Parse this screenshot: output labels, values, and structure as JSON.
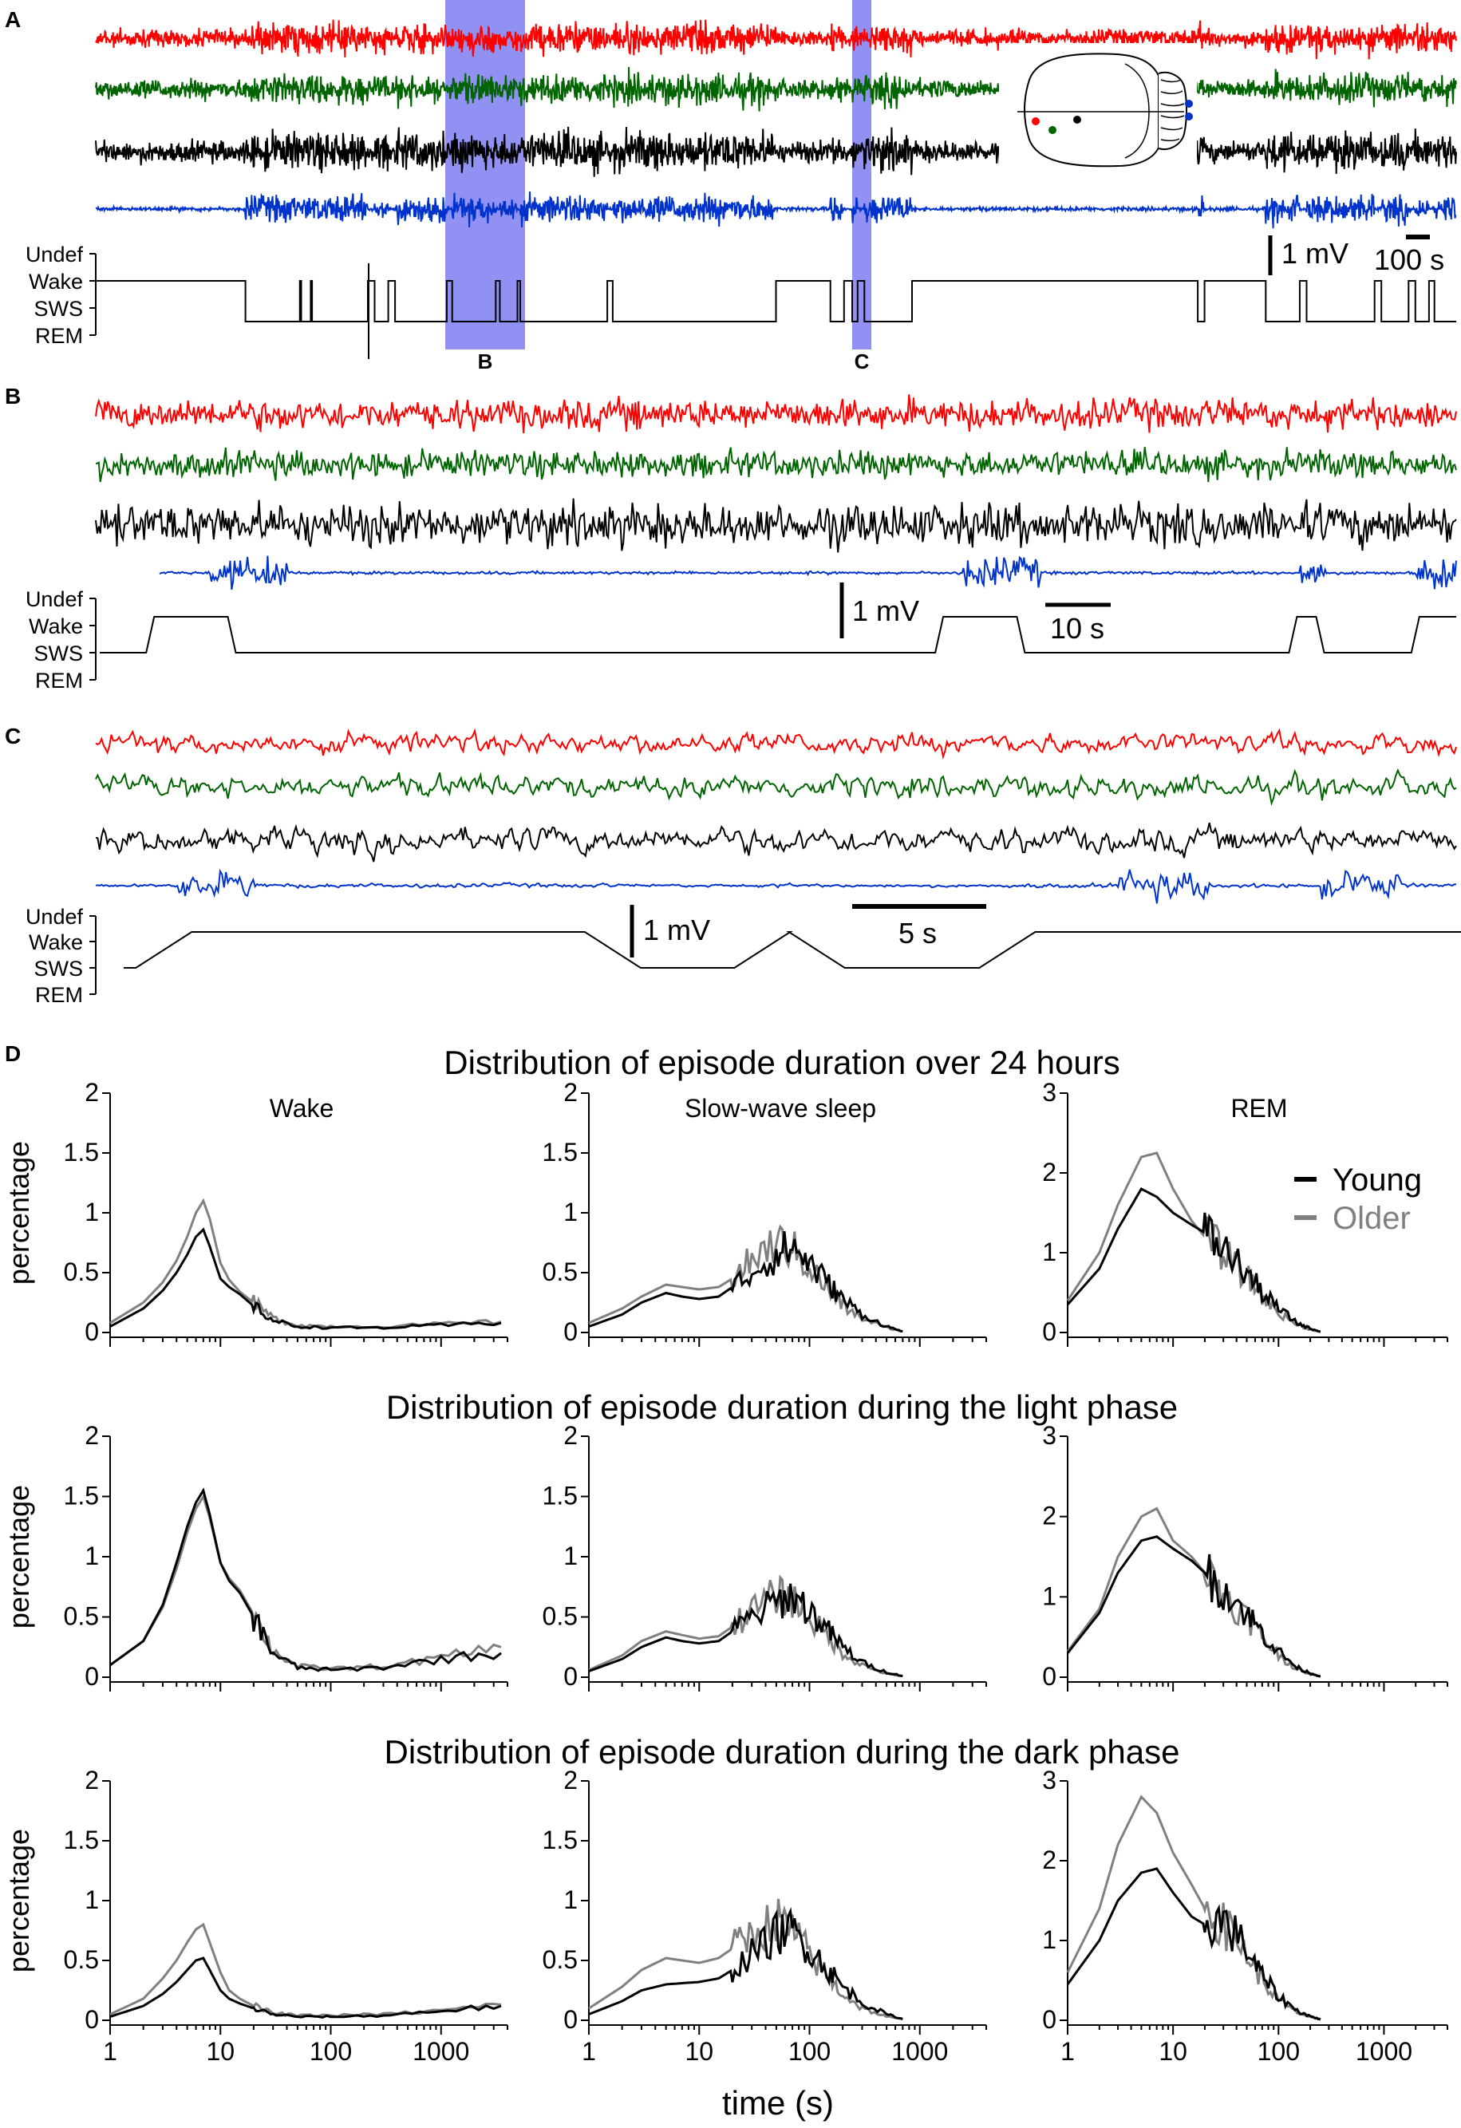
{
  "panel_labels": [
    "A",
    "B",
    "C",
    "D"
  ],
  "stage_labels": [
    "Undef",
    "Wake",
    "SWS",
    "REM"
  ],
  "highlight_labels": [
    "B",
    "C"
  ],
  "scalebars": {
    "a_amp": "1 mV",
    "a_time": "100 s",
    "b_amp": "1 mV",
    "b_time": "10 s",
    "c_amp": "1 mV",
    "c_time": "5 s"
  },
  "colors": {
    "trace_red": "#ff0000",
    "trace_green": "#006400",
    "trace_black": "#000000",
    "trace_blue": "#0033cc",
    "highlight": "#6666ee",
    "young": "#000000",
    "older": "#808080"
  },
  "icons": {
    "brain": "brain-schematic-icon"
  },
  "chart_data": [
    {
      "type": "line",
      "title": "Distribution of episode duration over 24 hours",
      "subtitle": "Wake",
      "xlabel": "",
      "ylabel": "percentage",
      "xscale": "log",
      "xlim": [
        1,
        4000
      ],
      "ylim": [
        0,
        2
      ],
      "yticks": [
        "0",
        "0.5",
        "1",
        "1.5",
        "2"
      ],
      "xticks": [],
      "series": [
        {
          "name": "Young",
          "x": [
            1,
            2,
            3,
            4,
            5,
            6,
            7,
            8,
            10,
            12,
            15,
            20,
            30,
            50,
            100,
            300,
            1000,
            3500
          ],
          "y": [
            0.05,
            0.2,
            0.35,
            0.5,
            0.65,
            0.8,
            0.86,
            0.72,
            0.45,
            0.38,
            0.32,
            0.22,
            0.1,
            0.05,
            0.04,
            0.04,
            0.06,
            0.08
          ]
        },
        {
          "name": "Older",
          "x": [
            1,
            2,
            3,
            4,
            5,
            6,
            7,
            8,
            10,
            12,
            15,
            20,
            30,
            50,
            100,
            300,
            1000,
            3500
          ],
          "y": [
            0.08,
            0.25,
            0.42,
            0.6,
            0.8,
            1.0,
            1.1,
            0.95,
            0.58,
            0.44,
            0.34,
            0.25,
            0.12,
            0.06,
            0.05,
            0.05,
            0.07,
            0.09
          ]
        }
      ]
    },
    {
      "type": "line",
      "title": "",
      "subtitle": "Slow-wave sleep",
      "xlabel": "",
      "ylabel": "",
      "xscale": "log",
      "xlim": [
        1,
        4000
      ],
      "ylim": [
        0,
        2
      ],
      "yticks": [
        "0",
        "0.5",
        "1",
        "1.5",
        "2"
      ],
      "xticks": [],
      "series": [
        {
          "name": "Young",
          "x": [
            1,
            2,
            3,
            5,
            7,
            10,
            15,
            20,
            30,
            50,
            70,
            100,
            150,
            200,
            300,
            500,
            700
          ],
          "y": [
            0.05,
            0.15,
            0.25,
            0.33,
            0.3,
            0.28,
            0.3,
            0.38,
            0.5,
            0.65,
            0.72,
            0.58,
            0.4,
            0.28,
            0.15,
            0.05,
            0.01
          ]
        },
        {
          "name": "Older",
          "x": [
            1,
            2,
            3,
            5,
            7,
            10,
            15,
            20,
            30,
            50,
            70,
            100,
            150,
            200,
            300,
            500,
            700
          ],
          "y": [
            0.08,
            0.2,
            0.3,
            0.4,
            0.38,
            0.36,
            0.38,
            0.45,
            0.6,
            0.75,
            0.7,
            0.55,
            0.35,
            0.22,
            0.12,
            0.04,
            0.01
          ]
        }
      ]
    },
    {
      "type": "line",
      "title": "",
      "subtitle": "REM",
      "xlabel": "",
      "ylabel": "",
      "xscale": "log",
      "xlim": [
        1,
        4000
      ],
      "ylim": [
        0,
        3
      ],
      "yticks": [
        "0",
        "1",
        "2",
        "3"
      ],
      "xticks": [],
      "series": [
        {
          "name": "Young",
          "x": [
            1,
            2,
            3,
            5,
            7,
            10,
            15,
            20,
            30,
            50,
            70,
            100,
            150,
            200,
            250
          ],
          "y": [
            0.35,
            0.8,
            1.3,
            1.8,
            1.7,
            1.5,
            1.35,
            1.25,
            1.05,
            0.75,
            0.5,
            0.3,
            0.12,
            0.05,
            0.01
          ]
        },
        {
          "name": "Older",
          "x": [
            1,
            2,
            3,
            5,
            7,
            10,
            15,
            20,
            30,
            50,
            70,
            100,
            150,
            200,
            250
          ],
          "y": [
            0.4,
            1.0,
            1.6,
            2.2,
            2.25,
            1.8,
            1.4,
            1.2,
            1.0,
            0.7,
            0.45,
            0.25,
            0.1,
            0.04,
            0.01
          ]
        }
      ]
    },
    {
      "type": "line",
      "title": "Distribution of episode duration during the light phase",
      "subtitle": "",
      "xlabel": "",
      "ylabel": "percentage",
      "xscale": "log",
      "xlim": [
        1,
        4000
      ],
      "ylim": [
        0,
        2
      ],
      "yticks": [
        "0",
        "0.5",
        "1",
        "1.5",
        "2"
      ],
      "xticks": [],
      "series": [
        {
          "name": "Young",
          "x": [
            1,
            2,
            3,
            4,
            5,
            6,
            7,
            8,
            10,
            12,
            15,
            20,
            30,
            50,
            100,
            300,
            1000,
            3500
          ],
          "y": [
            0.1,
            0.3,
            0.6,
            0.95,
            1.25,
            1.45,
            1.55,
            1.35,
            0.95,
            0.8,
            0.7,
            0.5,
            0.2,
            0.08,
            0.06,
            0.08,
            0.15,
            0.2
          ]
        },
        {
          "name": "Older",
          "x": [
            1,
            2,
            3,
            4,
            5,
            6,
            7,
            8,
            10,
            12,
            15,
            20,
            30,
            50,
            100,
            300,
            1000,
            3500
          ],
          "y": [
            0.1,
            0.3,
            0.58,
            0.9,
            1.2,
            1.4,
            1.5,
            1.32,
            0.95,
            0.82,
            0.72,
            0.52,
            0.22,
            0.09,
            0.07,
            0.09,
            0.16,
            0.25
          ]
        }
      ]
    },
    {
      "type": "line",
      "title": "",
      "subtitle": "",
      "xlabel": "",
      "ylabel": "",
      "xscale": "log",
      "xlim": [
        1,
        4000
      ],
      "ylim": [
        0,
        2
      ],
      "yticks": [
        "0",
        "0.5",
        "1",
        "1.5",
        "2"
      ],
      "xticks": [],
      "series": [
        {
          "name": "Young",
          "x": [
            1,
            2,
            3,
            5,
            7,
            10,
            15,
            20,
            30,
            50,
            70,
            100,
            150,
            200,
            300,
            500,
            700
          ],
          "y": [
            0.05,
            0.15,
            0.25,
            0.33,
            0.3,
            0.28,
            0.3,
            0.38,
            0.5,
            0.62,
            0.68,
            0.55,
            0.38,
            0.25,
            0.12,
            0.04,
            0.01
          ]
        },
        {
          "name": "Older",
          "x": [
            1,
            2,
            3,
            5,
            7,
            10,
            15,
            20,
            30,
            50,
            70,
            100,
            150,
            200,
            300,
            500,
            700
          ],
          "y": [
            0.06,
            0.18,
            0.3,
            0.38,
            0.35,
            0.32,
            0.34,
            0.42,
            0.55,
            0.68,
            0.65,
            0.5,
            0.32,
            0.2,
            0.1,
            0.03,
            0.01
          ]
        }
      ]
    },
    {
      "type": "line",
      "title": "",
      "subtitle": "",
      "xlabel": "",
      "ylabel": "",
      "xscale": "log",
      "xlim": [
        1,
        4000
      ],
      "ylim": [
        0,
        3
      ],
      "yticks": [
        "0",
        "1",
        "2",
        "3"
      ],
      "xticks": [],
      "series": [
        {
          "name": "Young",
          "x": [
            1,
            2,
            3,
            5,
            7,
            10,
            15,
            20,
            30,
            50,
            70,
            100,
            150,
            200,
            250
          ],
          "y": [
            0.3,
            0.8,
            1.3,
            1.7,
            1.75,
            1.6,
            1.45,
            1.3,
            1.1,
            0.8,
            0.55,
            0.32,
            0.12,
            0.05,
            0.01
          ]
        },
        {
          "name": "Older",
          "x": [
            1,
            2,
            3,
            5,
            7,
            10,
            15,
            20,
            30,
            50,
            70,
            100,
            150,
            200,
            250
          ],
          "y": [
            0.32,
            0.85,
            1.5,
            2.0,
            2.1,
            1.7,
            1.5,
            1.3,
            1.05,
            0.75,
            0.5,
            0.28,
            0.1,
            0.04,
            0.01
          ]
        }
      ]
    },
    {
      "type": "line",
      "title": "Distribution of episode duration during the dark phase",
      "subtitle": "",
      "xlabel": "",
      "ylabel": "percentage",
      "xscale": "log",
      "xlim": [
        1,
        4000
      ],
      "ylim": [
        0,
        2
      ],
      "yticks": [
        "0",
        "0.5",
        "1",
        "1.5",
        "2"
      ],
      "xticks": [
        "1",
        "10",
        "100",
        "1000"
      ],
      "series": [
        {
          "name": "Young",
          "x": [
            1,
            2,
            3,
            4,
            5,
            6,
            7,
            8,
            10,
            12,
            15,
            20,
            30,
            50,
            100,
            300,
            1000,
            3500
          ],
          "y": [
            0.03,
            0.12,
            0.22,
            0.32,
            0.42,
            0.5,
            0.52,
            0.42,
            0.25,
            0.18,
            0.14,
            0.1,
            0.05,
            0.03,
            0.03,
            0.04,
            0.08,
            0.12
          ]
        },
        {
          "name": "Older",
          "x": [
            1,
            2,
            3,
            4,
            5,
            6,
            7,
            8,
            10,
            12,
            15,
            20,
            30,
            50,
            100,
            300,
            1000,
            3500
          ],
          "y": [
            0.05,
            0.18,
            0.35,
            0.5,
            0.65,
            0.76,
            0.8,
            0.65,
            0.4,
            0.25,
            0.18,
            0.12,
            0.06,
            0.04,
            0.04,
            0.05,
            0.08,
            0.13
          ]
        }
      ]
    },
    {
      "type": "line",
      "title": "",
      "subtitle": "",
      "xlabel": "",
      "ylabel": "",
      "xscale": "log",
      "xlim": [
        1,
        4000
      ],
      "ylim": [
        0,
        2
      ],
      "yticks": [
        "0",
        "0.5",
        "1",
        "1.5",
        "2"
      ],
      "xticks": [
        "1",
        "10",
        "100",
        "1000"
      ],
      "series": [
        {
          "name": "Young",
          "x": [
            1,
            2,
            3,
            5,
            7,
            10,
            15,
            20,
            30,
            50,
            70,
            100,
            150,
            200,
            300,
            500,
            700
          ],
          "y": [
            0.05,
            0.16,
            0.25,
            0.3,
            0.31,
            0.32,
            0.35,
            0.42,
            0.55,
            0.72,
            0.75,
            0.6,
            0.42,
            0.28,
            0.15,
            0.05,
            0.01
          ]
        },
        {
          "name": "Older",
          "x": [
            1,
            2,
            3,
            5,
            7,
            10,
            15,
            20,
            30,
            50,
            70,
            100,
            150,
            200,
            300,
            500,
            700
          ],
          "y": [
            0.1,
            0.28,
            0.42,
            0.52,
            0.5,
            0.48,
            0.52,
            0.6,
            0.72,
            0.85,
            0.75,
            0.55,
            0.35,
            0.22,
            0.1,
            0.03,
            0.01
          ]
        }
      ]
    },
    {
      "type": "line",
      "title": "",
      "subtitle": "",
      "xlabel": "time (s)",
      "ylabel": "",
      "xscale": "log",
      "xlim": [
        1,
        4000
      ],
      "ylim": [
        0,
        3
      ],
      "yticks": [
        "0",
        "1",
        "2",
        "3"
      ],
      "xticks": [
        "1",
        "10",
        "100",
        "1000"
      ],
      "series": [
        {
          "name": "Young",
          "x": [
            1,
            2,
            3,
            5,
            7,
            10,
            15,
            20,
            30,
            50,
            70,
            100,
            150,
            200,
            250
          ],
          "y": [
            0.45,
            1.0,
            1.5,
            1.85,
            1.9,
            1.6,
            1.3,
            1.2,
            1.25,
            0.9,
            0.55,
            0.3,
            0.12,
            0.05,
            0.01
          ]
        },
        {
          "name": "Older",
          "x": [
            1,
            2,
            3,
            5,
            7,
            10,
            15,
            20,
            30,
            50,
            70,
            100,
            150,
            200,
            250
          ],
          "y": [
            0.6,
            1.4,
            2.2,
            2.8,
            2.6,
            2.1,
            1.7,
            1.4,
            1.2,
            0.85,
            0.5,
            0.25,
            0.1,
            0.04,
            0.01
          ]
        }
      ]
    }
  ],
  "legend": {
    "young": "Young",
    "older": "Older"
  },
  "hypnograms": {
    "A": {
      "transitions": [
        {
          "t": 0.0,
          "s": "Wake"
        },
        {
          "t": 0.11,
          "s": "SWS"
        },
        {
          "t": 0.15,
          "s": "Wake"
        },
        {
          "t": 0.151,
          "s": "SWS"
        },
        {
          "t": 0.158,
          "s": "Wake"
        },
        {
          "t": 0.159,
          "s": "SWS"
        },
        {
          "t": 0.2,
          "s": "Wake"
        },
        {
          "t": 0.205,
          "s": "SWS"
        },
        {
          "t": 0.215,
          "s": "Wake"
        },
        {
          "t": 0.22,
          "s": "SWS"
        },
        {
          "t": 0.258,
          "s": "Wake"
        },
        {
          "t": 0.262,
          "s": "SWS"
        },
        {
          "t": 0.294,
          "s": "Wake"
        },
        {
          "t": 0.297,
          "s": "SWS"
        },
        {
          "t": 0.31,
          "s": "Wake"
        },
        {
          "t": 0.312,
          "s": "SWS"
        },
        {
          "t": 0.376,
          "s": "Wake"
        },
        {
          "t": 0.38,
          "s": "SWS"
        },
        {
          "t": 0.5,
          "s": "Wake"
        },
        {
          "t": 0.54,
          "s": "SWS"
        },
        {
          "t": 0.55,
          "s": "Wake"
        },
        {
          "t": 0.556,
          "s": "SWS"
        },
        {
          "t": 0.56,
          "s": "Wake"
        },
        {
          "t": 0.565,
          "s": "SWS"
        },
        {
          "t": 0.6,
          "s": "Wake"
        },
        {
          "t": 0.81,
          "s": "SWS"
        },
        {
          "t": 0.815,
          "s": "Wake"
        },
        {
          "t": 0.86,
          "s": "SWS"
        },
        {
          "t": 0.885,
          "s": "Wake"
        },
        {
          "t": 0.89,
          "s": "SWS"
        },
        {
          "t": 0.94,
          "s": "Wake"
        },
        {
          "t": 0.945,
          "s": "SWS"
        },
        {
          "t": 0.965,
          "s": "Wake"
        },
        {
          "t": 0.97,
          "s": "SWS"
        },
        {
          "t": 0.98,
          "s": "Wake"
        },
        {
          "t": 0.984,
          "s": "SWS"
        }
      ]
    },
    "B": {
      "transitions": [
        {
          "t": 0.0,
          "s": "SWS"
        },
        {
          "t": 0.04,
          "s": "Wake"
        },
        {
          "t": 0.1,
          "s": "SWS"
        },
        {
          "t": 0.62,
          "s": "Wake"
        },
        {
          "t": 0.68,
          "s": "SWS"
        },
        {
          "t": 0.88,
          "s": "Wake"
        },
        {
          "t": 0.9,
          "s": "SWS"
        },
        {
          "t": 0.97,
          "s": "Wake"
        }
      ]
    },
    "C": {
      "transitions": [
        {
          "t": 0.0,
          "s": "SWS"
        },
        {
          "t": 0.05,
          "s": "Wake"
        },
        {
          "t": 0.38,
          "s": "SWS"
        },
        {
          "t": 0.49,
          "s": "Wake"
        },
        {
          "t": 0.53,
          "s": "SWS"
        },
        {
          "t": 0.67,
          "s": "Wake"
        },
        {
          "t": 1.0,
          "s": "Wake"
        }
      ]
    }
  }
}
